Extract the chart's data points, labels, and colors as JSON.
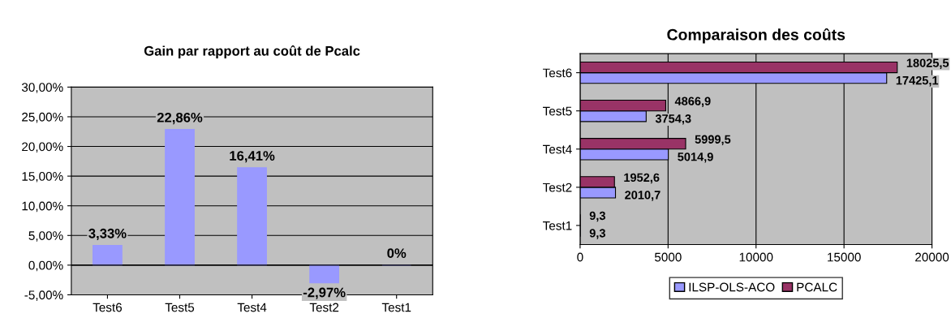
{
  "chart_data": [
    {
      "type": "bar",
      "title": "Gain par rapport au coût de Pcalc",
      "categories": [
        "Test6",
        "Test5",
        "Test4",
        "Test2",
        "Test1"
      ],
      "values": [
        3.33,
        22.86,
        16.41,
        -2.97,
        0
      ],
      "color": "#9999ff",
      "value_labels": [
        "3,33%",
        "22,86%",
        "16,41%",
        "-2,97%",
        "0%"
      ],
      "ylim": [
        -5,
        30
      ],
      "yticks": [
        {
          "value": -5,
          "label": "-5,00%"
        },
        {
          "value": 0,
          "label": "0,00%"
        },
        {
          "value": 5,
          "label": "5,00%"
        },
        {
          "value": 10,
          "label": "10,00%"
        },
        {
          "value": 15,
          "label": "15,00%"
        },
        {
          "value": 20,
          "label": "20,00%"
        },
        {
          "value": 25,
          "label": "25,00%"
        },
        {
          "value": 30,
          "label": "30,00%"
        }
      ],
      "grid": "y"
    },
    {
      "type": "bar",
      "orientation": "horizontal",
      "title": "Comparaison des coûts",
      "categories": [
        "Test6",
        "Test5",
        "Test4",
        "Test2",
        "Test1"
      ],
      "series": [
        {
          "name": "ILSP-OLS-ACO",
          "color": "#9999ff",
          "values": [
            17425.1,
            3754.3,
            5014.9,
            2010.7,
            9.3
          ],
          "value_labels": [
            "17425,1",
            "3754,3",
            "5014,9",
            "2010,7",
            "9,3"
          ]
        },
        {
          "name": "PCALC",
          "color": "#993366",
          "values": [
            18025.5,
            4866.9,
            5999.5,
            1952.6,
            9.3
          ],
          "value_labels": [
            "18025,5",
            "4866,9",
            "5999,5",
            "1952,6",
            "9,3"
          ]
        }
      ],
      "xlim": [
        0,
        20000
      ],
      "xticks": [
        0,
        5000,
        10000,
        15000,
        20000
      ],
      "grid": "x",
      "legend": "bottom"
    }
  ]
}
